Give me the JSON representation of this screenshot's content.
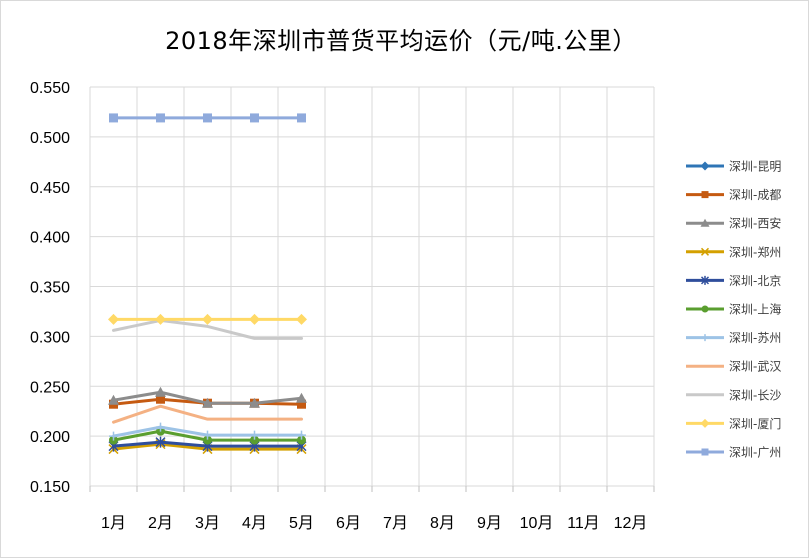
{
  "chart_data": {
    "type": "line",
    "title": "2018年深圳市普货平均运价（元/吨.公里）",
    "xlabel": "",
    "ylabel": "",
    "categories": [
      "1月",
      "2月",
      "3月",
      "4月",
      "5月",
      "6月",
      "7月",
      "8月",
      "9月",
      "10月",
      "11月",
      "12月"
    ],
    "ylim": [
      0.15,
      0.55
    ],
    "yticks": [
      "0.150",
      "0.200",
      "0.250",
      "0.300",
      "0.350",
      "0.400",
      "0.450",
      "0.500",
      "0.550"
    ],
    "grid": true,
    "legend_position": "right",
    "series": [
      {
        "name": "深圳-昆明",
        "color": "#2E75B6",
        "marker": "diamond",
        "values": [
          null,
          null,
          null,
          null,
          null,
          null,
          null,
          null,
          null,
          null,
          null,
          null
        ]
      },
      {
        "name": "深圳-成都",
        "color": "#C55A11",
        "marker": "square",
        "values": [
          0.232,
          0.237,
          0.233,
          0.233,
          0.232,
          null,
          null,
          null,
          null,
          null,
          null,
          null
        ]
      },
      {
        "name": "深圳-西安",
        "color": "#8C8C8C",
        "marker": "triangle",
        "values": [
          0.236,
          0.244,
          0.233,
          0.233,
          0.238,
          null,
          null,
          null,
          null,
          null,
          null,
          null
        ]
      },
      {
        "name": "深圳-郑州",
        "color": "#D4A000",
        "marker": "x",
        "values": [
          0.187,
          0.192,
          0.187,
          0.187,
          0.187,
          null,
          null,
          null,
          null,
          null,
          null,
          null
        ]
      },
      {
        "name": "深圳-北京",
        "color": "#2F4E9C",
        "marker": "star",
        "values": [
          0.19,
          0.194,
          0.19,
          0.19,
          0.19,
          null,
          null,
          null,
          null,
          null,
          null,
          null
        ]
      },
      {
        "name": "深圳-上海",
        "color": "#5A9E2F",
        "marker": "circle",
        "values": [
          0.196,
          0.205,
          0.196,
          0.196,
          0.196,
          null,
          null,
          null,
          null,
          null,
          null,
          null
        ]
      },
      {
        "name": "深圳-苏州",
        "color": "#9DC3E6",
        "marker": "plus",
        "values": [
          0.2,
          0.209,
          0.201,
          0.201,
          0.201,
          null,
          null,
          null,
          null,
          null,
          null,
          null
        ]
      },
      {
        "name": "深圳-武汉",
        "color": "#F4B183",
        "marker": "none",
        "values": [
          0.214,
          0.23,
          0.217,
          0.217,
          0.217,
          null,
          null,
          null,
          null,
          null,
          null,
          null
        ]
      },
      {
        "name": "深圳-长沙",
        "color": "#C9C9C9",
        "marker": "none",
        "values": [
          0.306,
          0.316,
          0.31,
          0.298,
          0.298,
          null,
          null,
          null,
          null,
          null,
          null,
          null
        ]
      },
      {
        "name": "深圳-厦门",
        "color": "#FFD966",
        "marker": "diamond",
        "values": [
          0.317,
          0.317,
          0.317,
          0.317,
          0.317,
          null,
          null,
          null,
          null,
          null,
          null,
          null
        ]
      },
      {
        "name": "深圳-广州",
        "color": "#8FAADC",
        "marker": "square",
        "values": [
          0.519,
          0.519,
          0.519,
          0.519,
          0.519,
          null,
          null,
          null,
          null,
          null,
          null,
          null
        ]
      }
    ]
  }
}
